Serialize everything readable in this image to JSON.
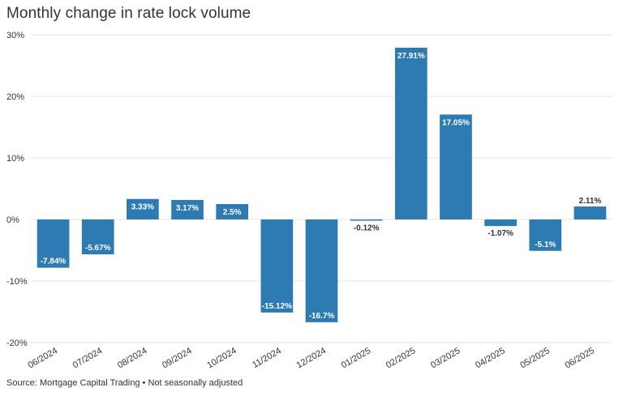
{
  "header": {
    "title": "Monthly change in rate lock volume"
  },
  "footer": {
    "source": "Source: Mortgage Capital Trading • Not seasonally adjusted"
  },
  "colors": {
    "bar": "#2e7bb4",
    "grid": "#e6e6e6",
    "axis_text": "#333333",
    "label_in_bar": "#ffffff",
    "label_out_bar": "#333333"
  },
  "chart_data": {
    "type": "bar",
    "categories": [
      "06/2024",
      "07/2024",
      "08/2024",
      "09/2024",
      "10/2024",
      "11/2024",
      "12/2024",
      "01/2025",
      "02/2025",
      "03/2025",
      "04/2025",
      "05/2025",
      "06/2025"
    ],
    "values": [
      -7.84,
      -5.67,
      3.33,
      3.17,
      2.5,
      -15.12,
      -16.7,
      -0.12,
      27.91,
      17.05,
      -1.07,
      -5.1,
      2.11
    ],
    "value_labels": [
      "-7.84%",
      "-5.67%",
      "3.33%",
      "3.17%",
      "2.5%",
      "-15.12%",
      "-16.7%",
      "-0.12%",
      "27.91%",
      "17.05%",
      "-1.07%",
      "-5.1%",
      "2.11%"
    ],
    "ylim": [
      -20,
      30
    ],
    "yticks": [
      30,
      20,
      10,
      0,
      -10,
      -20
    ],
    "ytick_labels": [
      "30%",
      "20%",
      "10%",
      "0%",
      "-10%",
      "-20%"
    ],
    "xlabel": "",
    "ylabel": "",
    "grid": true,
    "legend": false
  }
}
